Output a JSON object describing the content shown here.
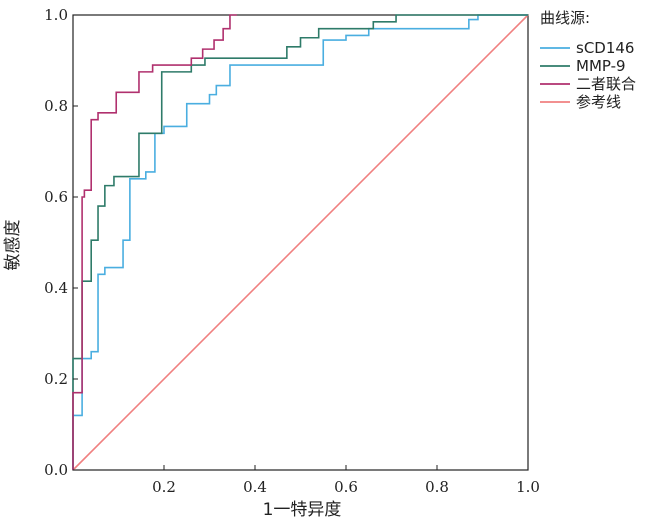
{
  "chart_data": {
    "type": "line",
    "xlabel": "1一特异度",
    "ylabel": "敏感度",
    "xlim": [
      0,
      1
    ],
    "ylim": [
      0,
      1
    ],
    "x_ticks": [
      "0.2",
      "0.4",
      "0.6",
      "0.8",
      "1.0"
    ],
    "y_ticks": [
      "0.0",
      "0.2",
      "0.4",
      "0.6",
      "0.8",
      "1.0"
    ],
    "legend_title": "曲线源:",
    "legend_position": "right",
    "grid": false,
    "series": [
      {
        "name": "sCD146",
        "color": "#4aaee0",
        "points": [
          [
            0,
            0
          ],
          [
            0,
            0.12
          ],
          [
            0.02,
            0.12
          ],
          [
            0.02,
            0.245
          ],
          [
            0.04,
            0.245
          ],
          [
            0.04,
            0.26
          ],
          [
            0.055,
            0.26
          ],
          [
            0.055,
            0.43
          ],
          [
            0.07,
            0.43
          ],
          [
            0.07,
            0.445
          ],
          [
            0.11,
            0.445
          ],
          [
            0.11,
            0.505
          ],
          [
            0.125,
            0.505
          ],
          [
            0.125,
            0.64
          ],
          [
            0.16,
            0.64
          ],
          [
            0.16,
            0.655
          ],
          [
            0.18,
            0.655
          ],
          [
            0.18,
            0.74
          ],
          [
            0.2,
            0.74
          ],
          [
            0.2,
            0.755
          ],
          [
            0.25,
            0.755
          ],
          [
            0.25,
            0.805
          ],
          [
            0.3,
            0.805
          ],
          [
            0.3,
            0.825
          ],
          [
            0.315,
            0.825
          ],
          [
            0.315,
            0.845
          ],
          [
            0.345,
            0.845
          ],
          [
            0.345,
            0.89
          ],
          [
            0.55,
            0.89
          ],
          [
            0.55,
            0.945
          ],
          [
            0.6,
            0.945
          ],
          [
            0.6,
            0.955
          ],
          [
            0.65,
            0.955
          ],
          [
            0.65,
            0.97
          ],
          [
            0.87,
            0.97
          ],
          [
            0.87,
            0.99
          ],
          [
            0.89,
            0.99
          ],
          [
            0.89,
            1.0
          ],
          [
            1.0,
            1.0
          ]
        ]
      },
      {
        "name": "MMP-9",
        "color": "#2e7b69",
        "points": [
          [
            0,
            0
          ],
          [
            0,
            0.245
          ],
          [
            0.02,
            0.245
          ],
          [
            0.02,
            0.415
          ],
          [
            0.04,
            0.415
          ],
          [
            0.04,
            0.505
          ],
          [
            0.055,
            0.505
          ],
          [
            0.055,
            0.58
          ],
          [
            0.07,
            0.58
          ],
          [
            0.07,
            0.625
          ],
          [
            0.09,
            0.625
          ],
          [
            0.09,
            0.645
          ],
          [
            0.145,
            0.645
          ],
          [
            0.145,
            0.74
          ],
          [
            0.195,
            0.74
          ],
          [
            0.195,
            0.875
          ],
          [
            0.26,
            0.875
          ],
          [
            0.26,
            0.89
          ],
          [
            0.29,
            0.89
          ],
          [
            0.29,
            0.905
          ],
          [
            0.47,
            0.905
          ],
          [
            0.47,
            0.93
          ],
          [
            0.5,
            0.93
          ],
          [
            0.5,
            0.95
          ],
          [
            0.54,
            0.95
          ],
          [
            0.54,
            0.97
          ],
          [
            0.66,
            0.97
          ],
          [
            0.66,
            0.985
          ],
          [
            0.71,
            0.985
          ],
          [
            0.71,
            1.0
          ],
          [
            1.0,
            1.0
          ]
        ]
      },
      {
        "name": "二者联合",
        "color": "#b0306e",
        "points": [
          [
            0,
            0
          ],
          [
            0,
            0.17
          ],
          [
            0.02,
            0.17
          ],
          [
            0.02,
            0.6
          ],
          [
            0.025,
            0.6
          ],
          [
            0.025,
            0.615
          ],
          [
            0.04,
            0.615
          ],
          [
            0.04,
            0.77
          ],
          [
            0.055,
            0.77
          ],
          [
            0.055,
            0.785
          ],
          [
            0.095,
            0.785
          ],
          [
            0.095,
            0.83
          ],
          [
            0.145,
            0.83
          ],
          [
            0.145,
            0.875
          ],
          [
            0.175,
            0.875
          ],
          [
            0.175,
            0.89
          ],
          [
            0.26,
            0.89
          ],
          [
            0.26,
            0.905
          ],
          [
            0.285,
            0.905
          ],
          [
            0.285,
            0.925
          ],
          [
            0.31,
            0.925
          ],
          [
            0.31,
            0.945
          ],
          [
            0.33,
            0.945
          ],
          [
            0.33,
            0.97
          ],
          [
            0.345,
            0.97
          ],
          [
            0.345,
            1.0
          ],
          [
            0.36,
            1.0
          ]
        ]
      },
      {
        "name": "参考线",
        "color": "#f08080",
        "points": [
          [
            0,
            0
          ],
          [
            1,
            1
          ]
        ]
      }
    ]
  }
}
